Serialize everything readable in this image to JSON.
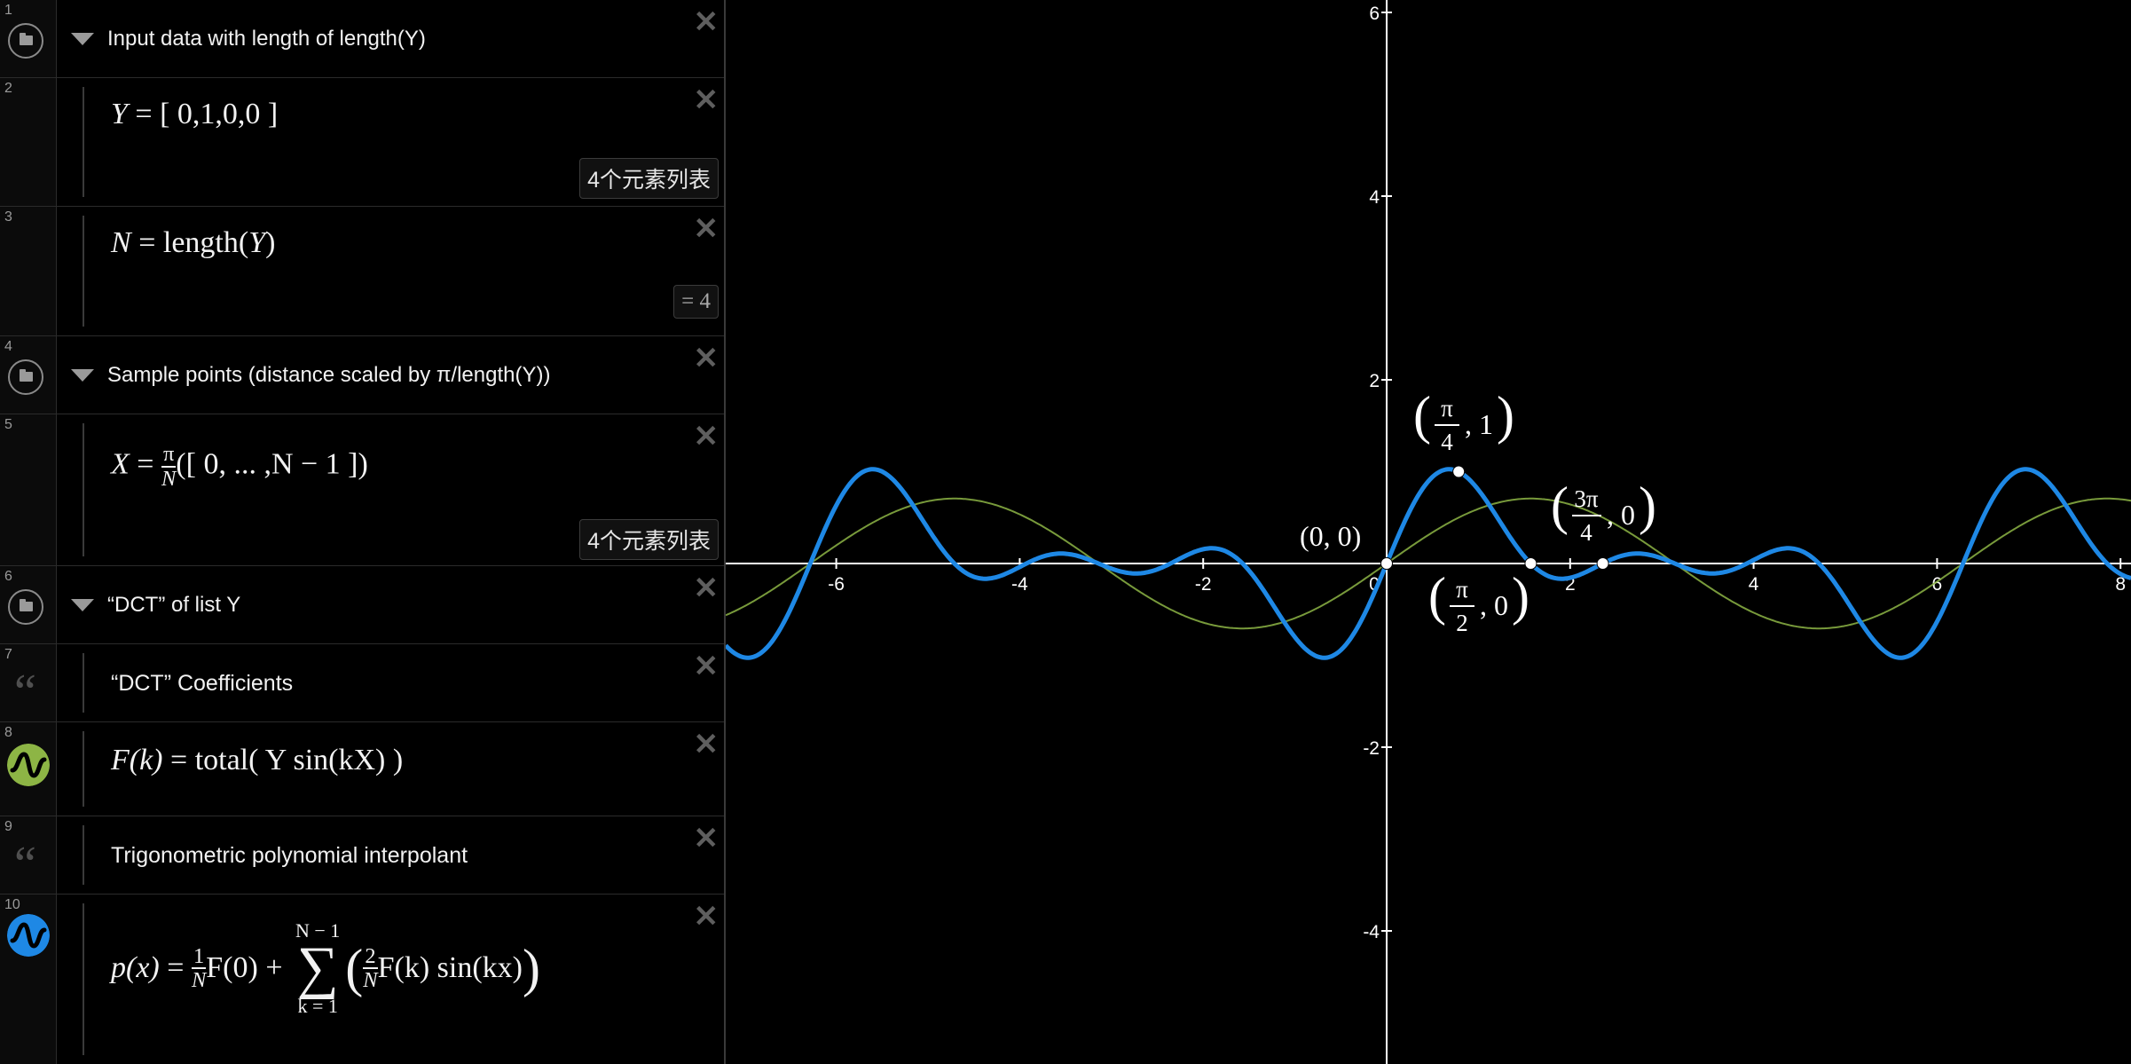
{
  "expressions": [
    {
      "num": "1",
      "type": "folder",
      "title": "Input data with length of length(Y)"
    },
    {
      "num": "2",
      "type": "math",
      "latex": "Y = [0,1,0,0]",
      "lhs": "Y",
      "eq": " = ",
      "body": "[ 0,1,0,0 ]",
      "badge": "4个元素列表"
    },
    {
      "num": "3",
      "type": "math",
      "lhs": "N",
      "eq": " = ",
      "fn": "length",
      "arg": "Y",
      "badge": "= 4"
    },
    {
      "num": "4",
      "type": "folder",
      "title": "Sample points (distance scaled by π/length(Y))"
    },
    {
      "num": "5",
      "type": "math",
      "lhs": "X",
      "eq": " = ",
      "frac_num": "π",
      "frac_den": "N",
      "body": "([ 0, ... ,N − 1 ])",
      "badge": "4个元素列表"
    },
    {
      "num": "6",
      "type": "folder",
      "title": "“DCT” of list Y"
    },
    {
      "num": "7",
      "type": "note",
      "text": "“DCT” Coefficients"
    },
    {
      "num": "8",
      "type": "math",
      "lhs": "F(k)",
      "eq": " = ",
      "body": "total( Y sin(kX) )",
      "color": "#8db545"
    },
    {
      "num": "9",
      "type": "note",
      "text": "Trigonometric polynomial interpolant"
    },
    {
      "num": "10",
      "type": "math",
      "lhs": "p(x)",
      "eq": " = ",
      "frac1_num": "1",
      "frac1_den": "N",
      "mid": "F(0) + ",
      "sum_top": "N − 1",
      "sum_sym": "∑",
      "sum_bot": "k = 1",
      "frac2_num": "2",
      "frac2_den": "N",
      "tail": "F(k) sin(kx)",
      "color": "#1e88e5"
    }
  ],
  "icons": {
    "folder": "folder-icon",
    "delete": "close-icon",
    "note": "quote-icon",
    "wave": "wave-icon"
  },
  "chart_data": {
    "type": "line",
    "x_range": [
      -7.3,
      8.1
    ],
    "y_range": [
      -5.5,
      6.1
    ],
    "x_ticks": [
      "-6",
      "-4",
      "-2",
      "0",
      "2",
      "4",
      "6",
      "8"
    ],
    "y_ticks": [
      "6",
      "4",
      "2",
      "-2",
      "-4"
    ],
    "grid": false,
    "series": [
      {
        "expression": "p(x)",
        "color": "#1e88e5"
      },
      {
        "expression": "F(1) sin(x)",
        "color": "#8db545"
      }
    ],
    "points": [
      {
        "label": "(0, 0)",
        "x": 0,
        "y": 0
      },
      {
        "label": "(π/4, 1)",
        "x": 0.785,
        "y": 1
      },
      {
        "label": "(π/2, 0)",
        "x": 1.571,
        "y": 0
      },
      {
        "label": "(3π/4, 0)",
        "x": 2.356,
        "y": 0
      }
    ]
  }
}
